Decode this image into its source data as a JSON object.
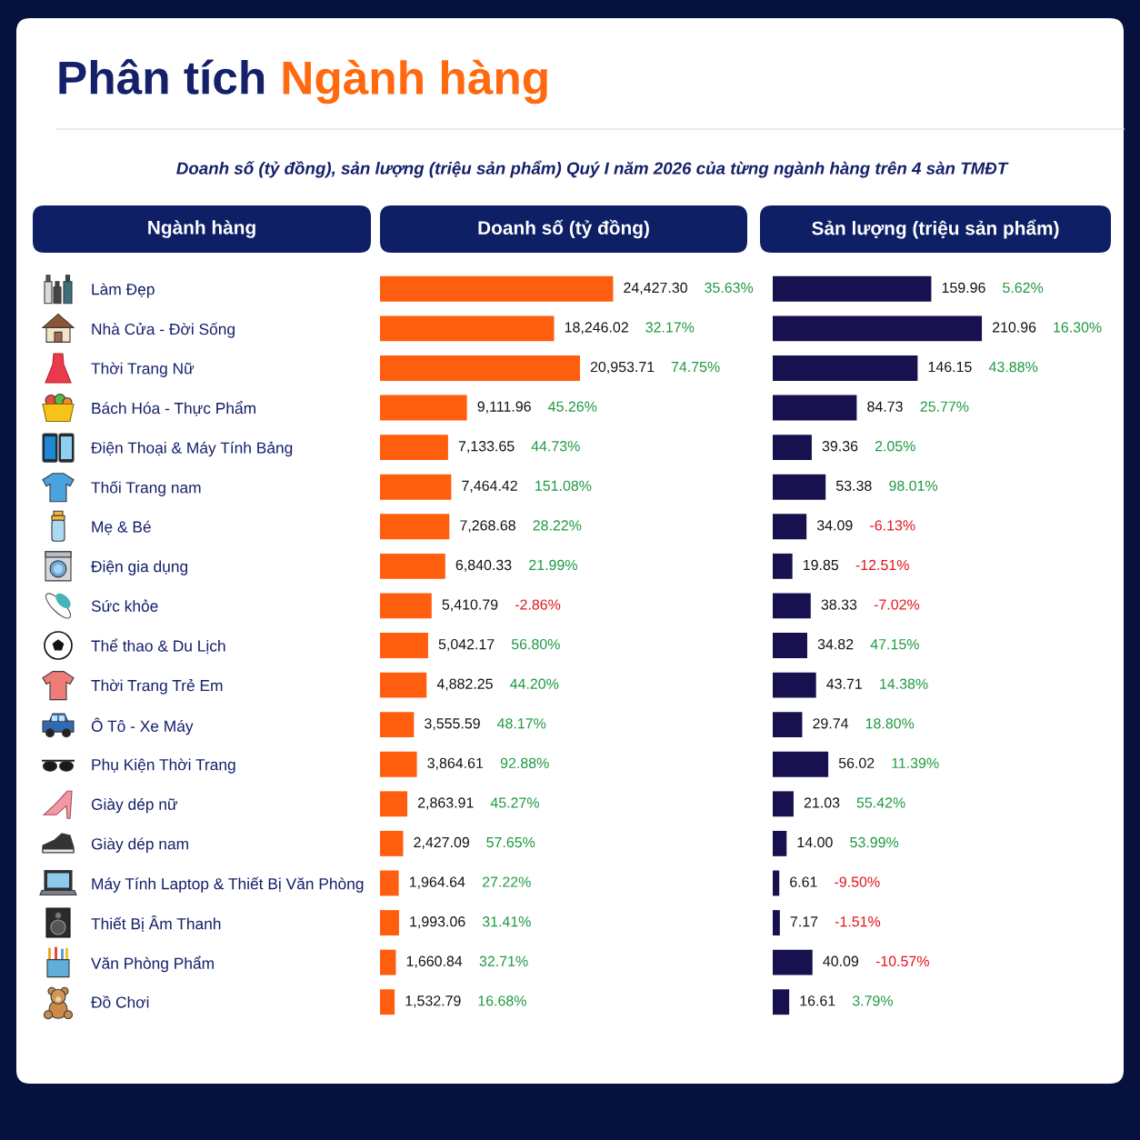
{
  "chart_data": [
    {
      "type": "bar",
      "orientation": "horizontal",
      "title": "Phân tích Ngành hàng",
      "subtitle": "Doanh số (tỷ đồng), sản lượng (triệu sản phẩm) Quý I năm 2026 của từng ngành hàng trên 4 sàn TMĐT",
      "ylabel": "Ngành hàng",
      "xlabel": "Doanh số (tỷ đồng)",
      "categories": [
        "Làm Đẹp",
        "Nhà Cửa - Đời Sống",
        "Thời Trang Nữ",
        "Bách Hóa - Thực Phẩm",
        "Điện Thoại & Máy Tính Bảng",
        "Thối Trang nam",
        "Mẹ & Bé",
        "Điện gia dụng",
        "Sức khỏe",
        "Thể thao & Du Lịch",
        "Thời Trang Trẻ Em",
        "Ô Tô - Xe Máy",
        "Phụ Kiện Thời Trang",
        "Giày dép nữ",
        "Giày dép nam",
        "Máy Tính Laptop & Thiết Bị Văn Phòng",
        "Thiết Bị Âm Thanh",
        "Văn Phòng Phẩm",
        "Đồ Chơi"
      ],
      "values": [
        24427.3,
        18246.02,
        20953.71,
        9111.96,
        7133.65,
        7464.42,
        7268.68,
        6840.33,
        5410.79,
        5042.17,
        4882.25,
        3555.59,
        3864.61,
        2863.91,
        2427.09,
        1964.64,
        1993.06,
        1660.84,
        1532.79
      ],
      "value_labels": [
        "24,427.30",
        "18,246.02",
        "20,953.71",
        "9,111.96",
        "7,133.65",
        "7,464.42",
        "7,268.68",
        "6,840.33",
        "5,410.79",
        "5,042.17",
        "4,882.25",
        "3,555.59",
        "3,864.61",
        "2,863.91",
        "2,427.09",
        "1,964.64",
        "1,993.06",
        "1,660.84",
        "1,532.79"
      ],
      "color": "#ff5e0e",
      "tick_labels": "y",
      "annotations": [
        "35.63%",
        "32.17%",
        "74.75%",
        "45.26%",
        "44.73%",
        "151.08%",
        "28.22%",
        "21.99%",
        "-2.86%",
        "56.80%",
        "44.20%",
        "48.17%",
        "92.88%",
        "45.27%",
        "57.65%",
        "27.22%",
        "31.41%",
        "32.71%",
        "16.68%"
      ]
    },
    {
      "type": "bar",
      "orientation": "horizontal",
      "xlabel": "Sản lượng (triệu sản phẩm)",
      "categories": [
        null,
        null,
        null,
        null,
        null,
        null,
        null,
        null,
        null,
        null,
        null,
        null,
        null,
        null,
        null,
        null,
        null,
        null,
        null
      ],
      "values": [
        159.96,
        210.96,
        146.15,
        84.73,
        39.36,
        53.38,
        34.09,
        19.85,
        38.33,
        34.82,
        43.71,
        29.74,
        56.02,
        21.03,
        14.0,
        6.61,
        7.17,
        40.09,
        16.61
      ],
      "value_labels": [
        "159.96",
        "210.96",
        "146.15",
        "84.73",
        "39.36",
        "53.38",
        "34.09",
        "19.85",
        "38.33",
        "34.82",
        "43.71",
        "29.74",
        "56.02",
        "21.03",
        "14.00",
        "6.61",
        "7.17",
        "40.09",
        "16.61"
      ],
      "color": "#17124f",
      "tick_labels": false,
      "annotations": [
        "5.62%",
        "16.30%",
        "43.88%",
        "25.77%",
        "2.05%",
        "98.01%",
        "-6.13%",
        "-12.51%",
        "-7.02%",
        "47.15%",
        "14.38%",
        "18.80%",
        "11.39%",
        "55.42%",
        "53.99%",
        "-9.50%",
        "-1.51%",
        "-10.57%",
        "3.79%"
      ]
    }
  ]
}
